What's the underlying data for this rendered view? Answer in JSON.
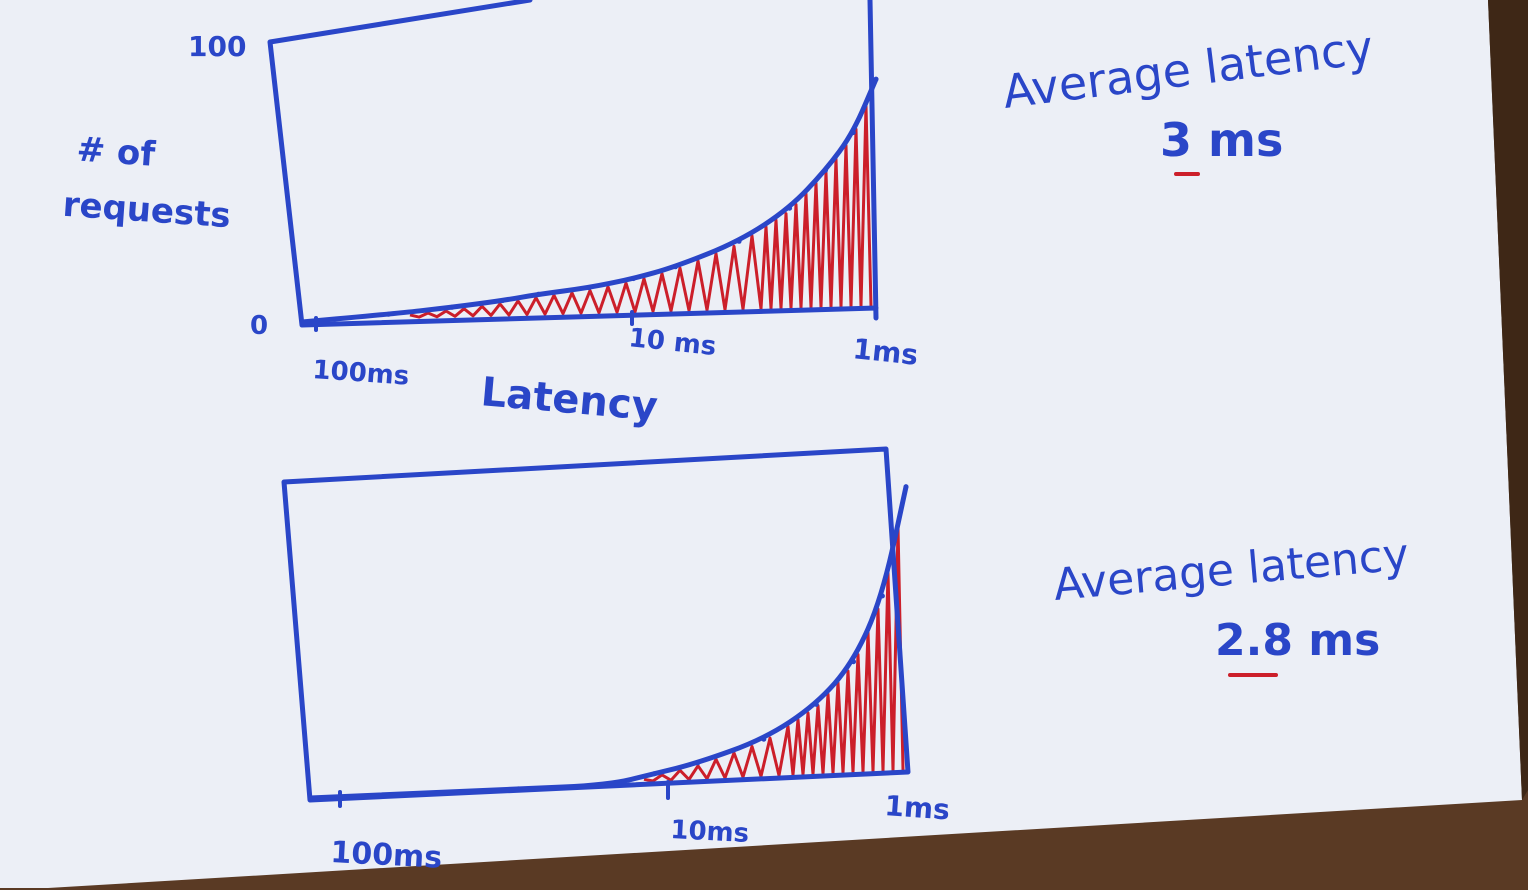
{
  "chart_data": [
    {
      "type": "area",
      "ylabel": "# of requests",
      "xlabel": "Latency",
      "y_ticks": [
        "100",
        "0"
      ],
      "ylim": [
        0,
        100
      ],
      "x_ticks": [
        "100ms",
        "10 ms",
        "1ms"
      ],
      "x_scale": "log (reversed: 100ms on left, 1ms on right)",
      "x": [
        100,
        50,
        30,
        20,
        15,
        10,
        7,
        5,
        3,
        2,
        1.5,
        1.2,
        1
      ],
      "values": [
        0,
        2,
        4,
        6,
        8,
        10,
        13,
        17,
        26,
        38,
        52,
        66,
        86
      ],
      "annotation": {
        "label": "Average latency",
        "value": "3 ms"
      },
      "colors": {
        "outline": "#2a46c8",
        "shading": "#cc1f2a"
      }
    },
    {
      "type": "area",
      "x_ticks": [
        "100ms",
        "10ms",
        "1ms"
      ],
      "x_scale": "log (reversed: 100ms on left, 1ms on right)",
      "ylim": [
        0,
        100
      ],
      "x": [
        100,
        20,
        10,
        7,
        5,
        3,
        2,
        1.5,
        1.2,
        1
      ],
      "values": [
        0,
        0,
        0,
        3,
        6,
        13,
        24,
        38,
        60,
        97
      ],
      "annotation": {
        "label": "Average latency",
        "value": "2.8 ms"
      },
      "colors": {
        "outline": "#2a46c8",
        "shading": "#cc1f2a"
      }
    }
  ]
}
